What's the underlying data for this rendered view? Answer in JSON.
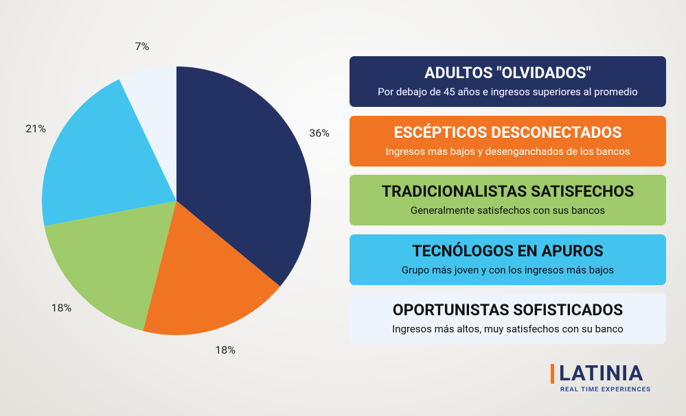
{
  "chart_data": {
    "type": "pie",
    "categories": [
      "ADULTOS \"OLVIDADOS\"",
      "ESCÉPTICOS DESCONECTADOS",
      "TRADICIONALISTAS SATISFECHOS",
      "TECNÓLOGOS EN APUROS",
      "OPORTUNISTAS SOFISTICADOS"
    ],
    "descriptions": [
      "Por debajo de 45 años e ingresos superiores al promedio",
      "Ingresos más bajos y desenganchados de los bancos",
      "Generalmente satisfechos con sus bancos",
      "Grupo más joven y con los ingresos más bajos",
      "Ingresos más altos, muy satisfechos con su banco"
    ],
    "values": [
      36,
      18,
      18,
      21,
      7
    ],
    "value_labels": [
      "36%",
      "18%",
      "18%",
      "21%",
      "7%"
    ],
    "colors": [
      "#233163",
      "#f07422",
      "#9fcb6b",
      "#42c4ef",
      "#edf4fb"
    ]
  },
  "logo": {
    "name": "LATINIA",
    "tagline": "REAL TIME EXPERIENCES"
  }
}
